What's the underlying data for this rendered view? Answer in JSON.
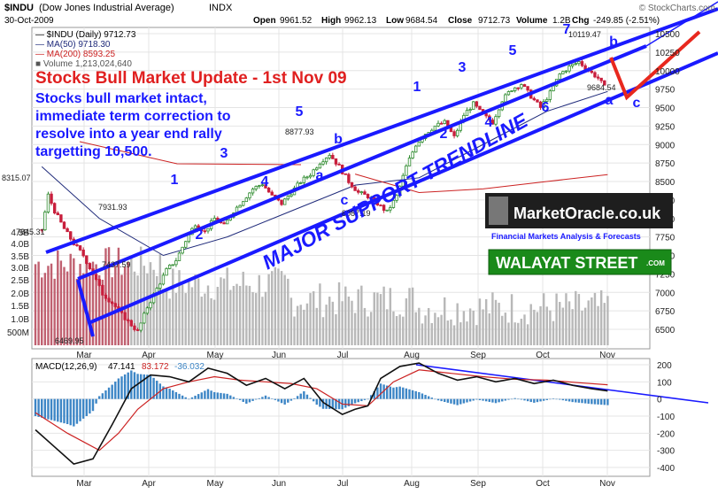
{
  "header": {
    "symbol": "$INDU",
    "symbol_desc": "(Dow Jones Industrial Average)",
    "exchange": "INDX",
    "date": "30-Oct-2009",
    "watermark": "© StockCharts.com",
    "open_label": "Open",
    "open": "9961.52",
    "high_label": "High",
    "high": "9962.13",
    "low_label": "Low",
    "low": "9684.54",
    "close_label": "Close",
    "close": "9712.73",
    "vol_label": "Volume",
    "vol": "1.2B",
    "chg_label": "Chg",
    "chg": "-249.85 (-2.51%)"
  },
  "legend": {
    "price": "$INDU (Daily) 9712.73",
    "ma50": "MA(50) 9718.30",
    "ma200": "MA(200) 8593.25",
    "volume": "Volume 1,213,024,640"
  },
  "overlay": {
    "title": "Stocks Bull Market Update - 1st Nov 09",
    "note_lines": [
      "Stocks bull market intact,",
      "immediate term correction to",
      "resolve into a year end rally",
      "targetting 10,500."
    ],
    "major_support": "MAJOR SUPPORT TRENDLINE"
  },
  "logos": {
    "marketoracle": "MarketOracle.co.uk",
    "marketoracle_tag": "Financial Markets Analysis & Forecasts",
    "walayat": "WALAYAT STREET",
    "walayat_suffix": ".COM"
  },
  "macd": {
    "label": "MACD(12,26,9)",
    "v1": "47.141",
    "v2": "83.172",
    "v3": "-36.032"
  },
  "colors": {
    "wave_blue": "#1a1aff",
    "ma50": "#1f2a7a",
    "ma200": "#cc2222",
    "up": "#2e8b2e",
    "down": "#c81e3c",
    "target_red": "#e8281e"
  },
  "chart_data": {
    "type": "line",
    "y_axis_right": [
      "10500",
      "10250",
      "10000",
      "9750",
      "9500",
      "9250",
      "9000",
      "8750",
      "8500",
      "8250",
      "8000",
      "7750",
      "7500",
      "7250",
      "7000",
      "6750",
      "6500"
    ],
    "ylim": [
      6500,
      10500
    ],
    "x_labels": [
      "Mar",
      "Apr",
      "May",
      "Jun",
      "Jul",
      "Aug",
      "Sep",
      "Oct",
      "Nov"
    ],
    "volume_labels": [
      "4.5B",
      "4.0B",
      "3.5B",
      "3.0B",
      "2.5B",
      "2.0B",
      "1.5B",
      "1.0B",
      "500M"
    ],
    "price_annotations": [
      "8315.07",
      "7845.31",
      "7931.93",
      "7437.59",
      "6469.95",
      "8877.93",
      "8087.19",
      "10119.47",
      "9684.54"
    ],
    "wave_labels": [
      "1",
      "2",
      "3",
      "4",
      "5",
      "a",
      "b",
      "c",
      "1",
      "2",
      "3",
      "4",
      "5",
      "6",
      "7",
      "a",
      "b",
      "c"
    ],
    "price_path": [
      [
        2,
        7850
      ],
      [
        4,
        8315
      ],
      [
        6,
        8100
      ],
      [
        9,
        7860
      ],
      [
        12,
        7660
      ],
      [
        15,
        7500
      ],
      [
        18,
        7250
      ],
      [
        21,
        6980
      ],
      [
        24,
        6860
      ],
      [
        27,
        6700
      ],
      [
        30,
        6560
      ],
      [
        32,
        6470
      ],
      [
        35,
        6800
      ],
      [
        38,
        7050
      ],
      [
        41,
        7300
      ],
      [
        44,
        7437
      ],
      [
        47,
        7700
      ],
      [
        50,
        7931
      ],
      [
        53,
        7820
      ],
      [
        56,
        8000
      ],
      [
        59,
        7900
      ],
      [
        62,
        8100
      ],
      [
        65,
        8250
      ],
      [
        68,
        8400
      ],
      [
        71,
        8470
      ],
      [
        74,
        8300
      ],
      [
        77,
        8200
      ],
      [
        80,
        8350
      ],
      [
        83,
        8500
      ],
      [
        86,
        8600
      ],
      [
        89,
        8760
      ],
      [
        92,
        8870
      ],
      [
        95,
        8700
      ],
      [
        98,
        8500
      ],
      [
        101,
        8350
      ],
      [
        104,
        8300
      ],
      [
        107,
        8200
      ],
      [
        110,
        8087
      ],
      [
        113,
        8300
      ],
      [
        116,
        8700
      ],
      [
        119,
        9000
      ],
      [
        122,
        9150
      ],
      [
        125,
        9250
      ],
      [
        128,
        9300
      ],
      [
        131,
        9100
      ],
      [
        134,
        9400
      ],
      [
        137,
        9550
      ],
      [
        140,
        9400
      ],
      [
        143,
        9300
      ],
      [
        146,
        9600
      ],
      [
        149,
        9750
      ],
      [
        152,
        9820
      ],
      [
        155,
        9650
      ],
      [
        158,
        9500
      ],
      [
        161,
        9700
      ],
      [
        164,
        9950
      ],
      [
        167,
        10050
      ],
      [
        170,
        10119
      ],
      [
        173,
        10000
      ],
      [
        176,
        9900
      ],
      [
        179,
        9712
      ]
    ],
    "ma50_path": [
      [
        2,
        8700
      ],
      [
        20,
        8000
      ],
      [
        40,
        7500
      ],
      [
        60,
        7750
      ],
      [
        80,
        8100
      ],
      [
        100,
        8450
      ],
      [
        120,
        8550
      ],
      [
        140,
        9000
      ],
      [
        160,
        9450
      ],
      [
        179,
        9718
      ]
    ],
    "ma200_path": [
      [
        100,
        8600
      ],
      [
        120,
        8350
      ],
      [
        140,
        8400
      ],
      [
        160,
        8500
      ],
      [
        179,
        8593
      ]
    ],
    "macd_axis": [
      "200",
      "100",
      "0",
      "-100",
      "-200",
      "-300",
      "-400"
    ],
    "macd_line": [
      [
        0,
        -180
      ],
      [
        6,
        -280
      ],
      [
        12,
        -380
      ],
      [
        18,
        -350
      ],
      [
        24,
        -150
      ],
      [
        30,
        60
      ],
      [
        36,
        140
      ],
      [
        42,
        130
      ],
      [
        48,
        100
      ],
      [
        54,
        180
      ],
      [
        60,
        150
      ],
      [
        66,
        80
      ],
      [
        72,
        120
      ],
      [
        78,
        60
      ],
      [
        84,
        120
      ],
      [
        90,
        -20
      ],
      [
        96,
        -90
      ],
      [
        100,
        -60
      ],
      [
        104,
        -40
      ],
      [
        108,
        120
      ],
      [
        114,
        190
      ],
      [
        120,
        210
      ],
      [
        126,
        150
      ],
      [
        132,
        110
      ],
      [
        138,
        130
      ],
      [
        144,
        100
      ],
      [
        150,
        120
      ],
      [
        156,
        90
      ],
      [
        162,
        110
      ],
      [
        168,
        80
      ],
      [
        174,
        60
      ],
      [
        179,
        47
      ]
    ],
    "signal_line": [
      [
        0,
        -80
      ],
      [
        10,
        -200
      ],
      [
        20,
        -300
      ],
      [
        26,
        -200
      ],
      [
        32,
        -60
      ],
      [
        40,
        60
      ],
      [
        48,
        100
      ],
      [
        56,
        130
      ],
      [
        64,
        110
      ],
      [
        72,
        100
      ],
      [
        80,
        90
      ],
      [
        88,
        60
      ],
      [
        96,
        -30
      ],
      [
        104,
        -40
      ],
      [
        112,
        100
      ],
      [
        120,
        170
      ],
      [
        130,
        150
      ],
      [
        140,
        130
      ],
      [
        150,
        115
      ],
      [
        160,
        110
      ],
      [
        170,
        95
      ],
      [
        179,
        83
      ]
    ]
  }
}
